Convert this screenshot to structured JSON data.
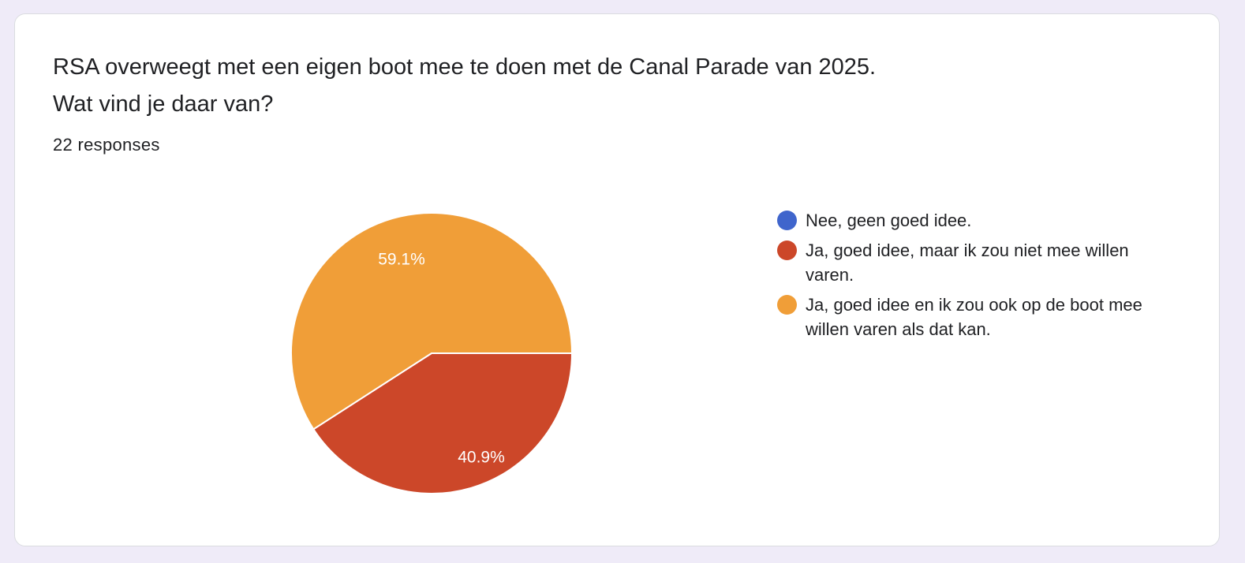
{
  "card": {
    "question_line1": "RSA overweegt met een eigen boot mee te doen met de Canal Parade van 2025.",
    "question_line2": "Wat vind je daar van?",
    "responses": "22 responses"
  },
  "chart_data": {
    "type": "pie",
    "title": "",
    "categories": [
      "Nee, geen goed idee.",
      "Ja, goed idee, maar ik zou niet mee willen varen.",
      "Ja, goed idee en ik zou ook op de boot mee willen varen als dat kan."
    ],
    "values": [
      0,
      40.9,
      59.1
    ],
    "value_labels": [
      "",
      "40.9%",
      "59.1%"
    ],
    "colors": [
      "#3f65cc",
      "#cc4729",
      "#f09e38"
    ],
    "legend_position": "right"
  }
}
